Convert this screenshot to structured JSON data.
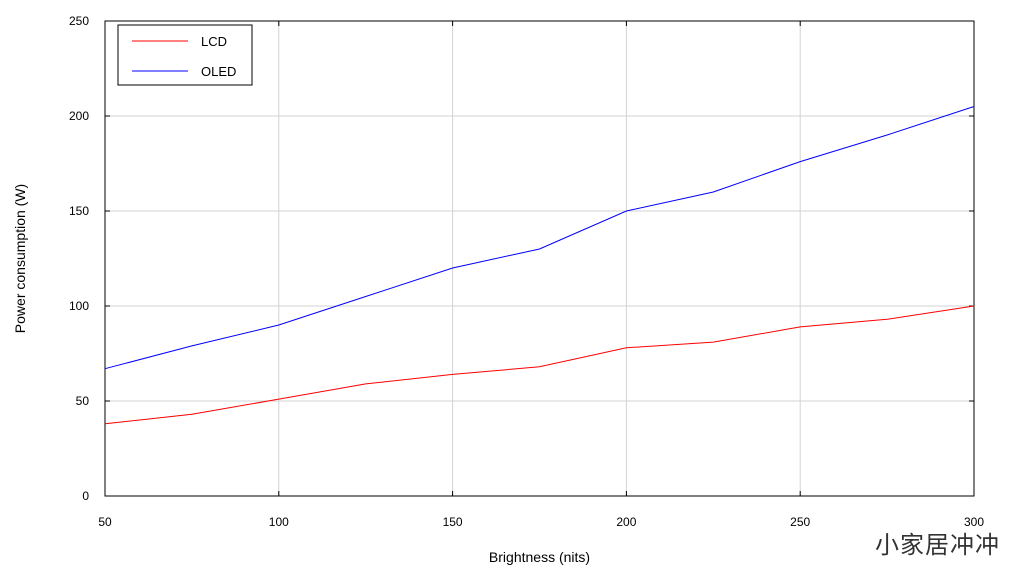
{
  "chart_data": {
    "type": "line",
    "title": "",
    "xlabel": "Brightness (nits)",
    "ylabel": "Power consumption (W)",
    "xlim": [
      50,
      300
    ],
    "ylim": [
      0,
      250
    ],
    "x_ticks": [
      50,
      100,
      150,
      200,
      250,
      300
    ],
    "y_ticks": [
      0,
      50,
      100,
      150,
      200,
      250
    ],
    "grid": true,
    "legend_position": "top-left",
    "x": [
      50,
      75,
      100,
      125,
      150,
      175,
      200,
      225,
      250,
      275,
      300
    ],
    "series": [
      {
        "name": "LCD",
        "color": "#ff0000",
        "values": [
          38,
          43,
          51,
          59,
          64,
          68,
          78,
          81,
          89,
          93,
          100
        ]
      },
      {
        "name": "OLED",
        "color": "#0000ff",
        "values": [
          67,
          79,
          90,
          105,
          120,
          130,
          150,
          160,
          176,
          190,
          205
        ]
      }
    ]
  },
  "watermark": "小家居冲冲"
}
